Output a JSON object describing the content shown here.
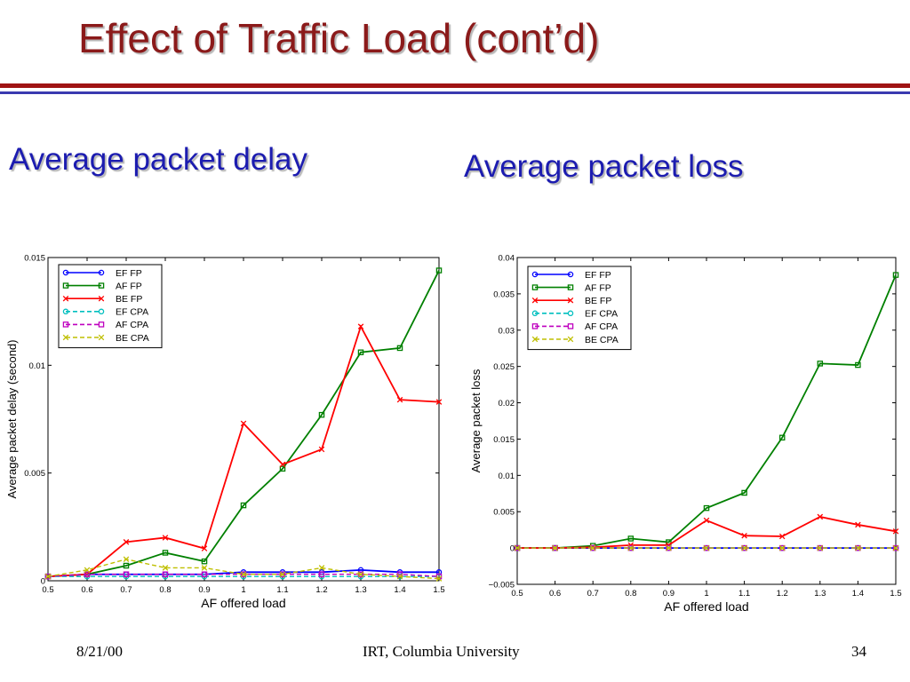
{
  "slide": {
    "title": "Effect of Traffic Load (cont’d)",
    "heading_left": "Average packet delay",
    "heading_right": "Average packet loss",
    "footer_date": "8/21/00",
    "footer_org": "IRT, Columbia University",
    "footer_page": "34"
  },
  "colors": {
    "title": "#8b1a1a",
    "heading": "#1c1cb0",
    "rule_red": "#a01414",
    "rule_blue": "#3a3ab0"
  },
  "chart_data": [
    {
      "type": "line",
      "title": "",
      "xlabel": "AF offered load",
      "ylabel": "Average packet delay (second)",
      "xlim": [
        0.5,
        1.5
      ],
      "ylim": [
        0,
        0.015
      ],
      "x": [
        0.5,
        0.6,
        0.7,
        0.8,
        0.9,
        1,
        1.1,
        1.2,
        1.3,
        1.4,
        1.5
      ],
      "x_ticks": [
        "0.5",
        "0.6",
        "0.7",
        "0.8",
        "0.9",
        "1",
        "1.1",
        "1.2",
        "1.3",
        "1.4",
        "1.5"
      ],
      "y_ticks": [
        {
          "value": 0,
          "label": "0"
        },
        {
          "value": 0.005,
          "label": "0.005"
        },
        {
          "value": 0.01,
          "label": "0.01"
        },
        {
          "value": 0.015,
          "label": "0.015"
        }
      ],
      "grid": false,
      "legend_position": "top-left",
      "series": [
        {
          "name": "EF FP",
          "color": "#0000ff",
          "dash": false,
          "marker": "circle",
          "values": [
            0.0002,
            0.0003,
            0.0003,
            0.0003,
            0.0003,
            0.0004,
            0.0004,
            0.0004,
            0.0005,
            0.0004,
            0.0004
          ]
        },
        {
          "name": "AF FP",
          "color": "#008000",
          "dash": false,
          "marker": "square",
          "values": [
            0.0002,
            0.0003,
            0.0007,
            0.0013,
            0.0009,
            0.0035,
            0.0052,
            0.0077,
            0.0106,
            0.0108,
            0.0144
          ]
        },
        {
          "name": "BE FP",
          "color": "#ff0000",
          "dash": false,
          "marker": "x",
          "values": [
            0.0002,
            0.0003,
            0.0018,
            0.002,
            0.0015,
            0.0073,
            0.0054,
            0.0061,
            0.0118,
            0.0084,
            0.0083
          ]
        },
        {
          "name": "EF CPA",
          "color": "#00bfbf",
          "dash": true,
          "marker": "circle",
          "values": [
            0.0002,
            0.0002,
            0.0002,
            0.0002,
            0.0002,
            0.0002,
            0.0002,
            0.0002,
            0.0002,
            0.0002,
            0.0002
          ]
        },
        {
          "name": "AF CPA",
          "color": "#bf00bf",
          "dash": true,
          "marker": "square",
          "values": [
            0.0002,
            0.0003,
            0.0003,
            0.0003,
            0.0003,
            0.0003,
            0.0003,
            0.0003,
            0.0003,
            0.0003,
            0.0002
          ]
        },
        {
          "name": "BE CPA",
          "color": "#bfbf00",
          "dash": true,
          "marker": "x",
          "values": [
            0.0002,
            0.0005,
            0.001,
            0.0006,
            0.0006,
            0.0003,
            0.0003,
            0.0006,
            0.0003,
            0.0002,
            0.0001
          ]
        }
      ]
    },
    {
      "type": "line",
      "title": "",
      "xlabel": "AF offered load",
      "ylabel": "Average packet loss",
      "xlim": [
        0.5,
        1.5
      ],
      "ylim": [
        -0.005,
        0.04
      ],
      "x": [
        0.5,
        0.6,
        0.7,
        0.8,
        0.9,
        1,
        1.1,
        1.2,
        1.3,
        1.4,
        1.5
      ],
      "x_ticks": [
        "0.5",
        "0.6",
        "0.7",
        "0.8",
        "0.9",
        "1",
        "1.1",
        "1.2",
        "1.3",
        "1.4",
        "1.5"
      ],
      "y_ticks": [
        {
          "value": -0.005,
          "label": "−0.005"
        },
        {
          "value": 0,
          "label": "0"
        },
        {
          "value": 0.005,
          "label": "0.005"
        },
        {
          "value": 0.01,
          "label": "0.01"
        },
        {
          "value": 0.015,
          "label": "0.015"
        },
        {
          "value": 0.02,
          "label": "0.02"
        },
        {
          "value": 0.025,
          "label": "0.025"
        },
        {
          "value": 0.03,
          "label": "0.03"
        },
        {
          "value": 0.035,
          "label": "0.035"
        },
        {
          "value": 0.04,
          "label": "0.04"
        }
      ],
      "grid": false,
      "legend_position": "top-left",
      "series": [
        {
          "name": "EF FP",
          "color": "#0000ff",
          "dash": false,
          "marker": "circle",
          "values": [
            0,
            0,
            0,
            0,
            0,
            0,
            0,
            0,
            0,
            0,
            0
          ]
        },
        {
          "name": "AF FP",
          "color": "#008000",
          "dash": false,
          "marker": "square",
          "values": [
            0,
            0,
            0.0003,
            0.0013,
            0.0008,
            0.0055,
            0.0076,
            0.0152,
            0.0254,
            0.0252,
            0.0376
          ]
        },
        {
          "name": "BE FP",
          "color": "#ff0000",
          "dash": false,
          "marker": "x",
          "values": [
            0,
            0,
            0.0001,
            0.0004,
            0.0004,
            0.0038,
            0.0017,
            0.0016,
            0.0043,
            0.0032,
            0.0023
          ]
        },
        {
          "name": "EF CPA",
          "color": "#00bfbf",
          "dash": true,
          "marker": "circle",
          "values": [
            0,
            0,
            0,
            0,
            0,
            0,
            0,
            0,
            0,
            0,
            0
          ]
        },
        {
          "name": "AF CPA",
          "color": "#bf00bf",
          "dash": true,
          "marker": "square",
          "values": [
            0,
            0,
            0,
            0,
            0,
            0,
            0,
            0,
            0,
            0,
            0
          ]
        },
        {
          "name": "BE CPA",
          "color": "#bfbf00",
          "dash": true,
          "marker": "x",
          "values": [
            0,
            0,
            0,
            0,
            0,
            0,
            0,
            0,
            0,
            0,
            0
          ]
        }
      ]
    }
  ]
}
